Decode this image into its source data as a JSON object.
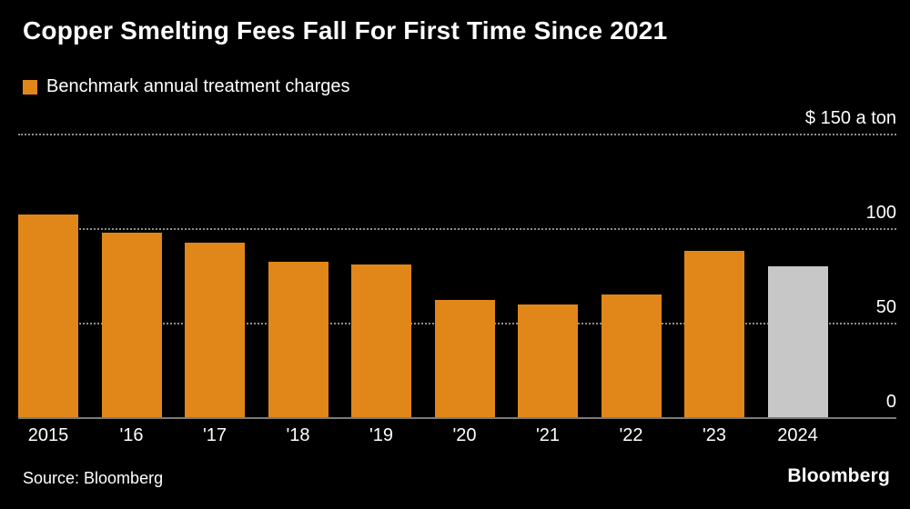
{
  "header": {
    "title": "Copper Smelting Fees Fall For First Time Since 2021"
  },
  "legend": {
    "label": "Benchmark annual treatment charges",
    "swatch_color": "#E18719"
  },
  "chart_data": {
    "type": "bar",
    "title": "Copper Smelting Fees Fall For First Time Since 2021",
    "subtitle": "Benchmark annual treatment charges",
    "categories": [
      "2015",
      "'16",
      "'17",
      "'18",
      "'19",
      "'20",
      "'21",
      "'22",
      "'23",
      "2024"
    ],
    "values": [
      107,
      97.5,
      92.5,
      82.25,
      80.8,
      62,
      59.5,
      65,
      88,
      80
    ],
    "bar_colors": [
      "#E18719",
      "#E18719",
      "#E18719",
      "#E18719",
      "#E18719",
      "#E18719",
      "#E18719",
      "#E18719",
      "#E18719",
      "#C7C7C7"
    ],
    "unit": "$ a ton",
    "ylim": [
      0,
      150
    ],
    "yticks": [
      {
        "value": 150,
        "label": "$ 150 a ton"
      },
      {
        "value": 100,
        "label": "100"
      },
      {
        "value": 50,
        "label": "50"
      },
      {
        "value": 0,
        "label": "0"
      }
    ],
    "grid": "horizontal-dotted",
    "legend_position": "top-left",
    "highlight": {
      "category": "2024",
      "color": "#C7C7C7"
    }
  },
  "footer": {
    "source": "Source: Bloomberg",
    "brand": "Bloomberg"
  }
}
